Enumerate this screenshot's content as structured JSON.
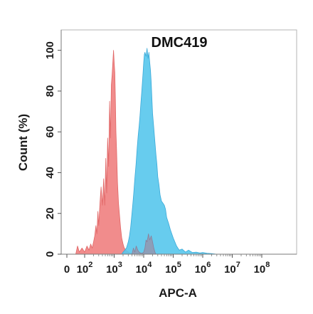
{
  "chart_data": {
    "type": "area",
    "title": "DMC419",
    "xlabel": "APC-A",
    "ylabel": "Count  (%)",
    "xscale": "biexponential",
    "xlim": [
      -50,
      100000000
    ],
    "ylim": [
      0,
      110
    ],
    "x_ticks": [
      {
        "value": 0,
        "base": "0",
        "exp": ""
      },
      {
        "value": 100,
        "base": "10",
        "exp": "2"
      },
      {
        "value": 1000,
        "base": "10",
        "exp": "3"
      },
      {
        "value": 10000,
        "base": "10",
        "exp": "4"
      },
      {
        "value": 100000,
        "base": "10",
        "exp": "5"
      },
      {
        "value": 1000000,
        "base": "10",
        "exp": "6"
      },
      {
        "value": 10000000,
        "base": "10",
        "exp": "7"
      },
      {
        "value": 100000000,
        "base": "10",
        "exp": "8"
      }
    ],
    "y_ticks": [
      0,
      20,
      40,
      60,
      80,
      100
    ],
    "grid": false,
    "legend": "none",
    "series": [
      {
        "color": "#f08080",
        "stroke": "#e06666",
        "x": [
          50,
          60,
          70,
          85,
          100,
          120,
          140,
          160,
          180,
          200,
          220,
          240,
          260,
          280,
          300,
          330,
          360,
          400,
          440,
          480,
          520,
          560,
          600,
          650,
          700,
          750,
          800,
          850,
          900,
          950,
          1000,
          1050,
          1100,
          1150,
          1200,
          1300,
          1400,
          1500,
          1650,
          1800,
          2000,
          2200,
          2500,
          3000,
          3500,
          4000,
          4500,
          5000
        ],
        "y": [
          0,
          4,
          1,
          3,
          1,
          4,
          2,
          5,
          3,
          6,
          9,
          14,
          10,
          21,
          14,
          25,
          33,
          24,
          37,
          24,
          47,
          30,
          57,
          43,
          75,
          57,
          83,
          88,
          94,
          100,
          94,
          89,
          76,
          60,
          52,
          35,
          25,
          20,
          13,
          8,
          5,
          3,
          2,
          1,
          0.5,
          0.3,
          0.1,
          0
        ]
      },
      {
        "color": "#57c7ec",
        "stroke": "#3aa9d8",
        "x": [
          1800,
          2000,
          2300,
          2600,
          3000,
          3300,
          3600,
          4000,
          4300,
          4600,
          5000,
          5500,
          6000,
          6500,
          7000,
          7500,
          8000,
          8500,
          9000,
          9500,
          10000,
          10500,
          11000,
          12000,
          13000,
          14000,
          15000,
          16000,
          17000,
          18000,
          19000,
          20000,
          22000,
          24000,
          26000,
          28000,
          30000,
          33000,
          36000,
          40000,
          45000,
          50000,
          55000,
          60000,
          70000,
          80000,
          100000,
          130000,
          160000,
          200000,
          260000,
          330000,
          450000,
          600000,
          800000,
          1000000,
          1400000,
          2000000,
          3000000
        ],
        "y": [
          0,
          1,
          2,
          3,
          6,
          9,
          13,
          20,
          25,
          30,
          37,
          44,
          52,
          58,
          63,
          68,
          74,
          79,
          84,
          89,
          94,
          98,
          99,
          97,
          101,
          96,
          99,
          94,
          90,
          84,
          76,
          69,
          62,
          55,
          49,
          44,
          38,
          34,
          29,
          26,
          25,
          24,
          22,
          18,
          15,
          12,
          8,
          4,
          2,
          2.5,
          1,
          2,
          0.8,
          1,
          0.6,
          0.8,
          0.5,
          0.3,
          0
        ]
      },
      {
        "color": "#9a8fa6",
        "stroke": "#8b809a",
        "x": [
          4000,
          4500,
          5000,
          5600,
          6300,
          7000,
          8000,
          9000,
          10000,
          11000,
          12000,
          13000,
          14500,
          16000,
          18000,
          20000,
          22000,
          24000,
          26000
        ],
        "y": [
          0,
          3,
          1,
          4,
          2,
          1,
          0.5,
          0.5,
          1,
          3,
          7,
          6,
          10,
          7,
          9,
          6,
          3,
          1,
          0
        ]
      }
    ]
  }
}
